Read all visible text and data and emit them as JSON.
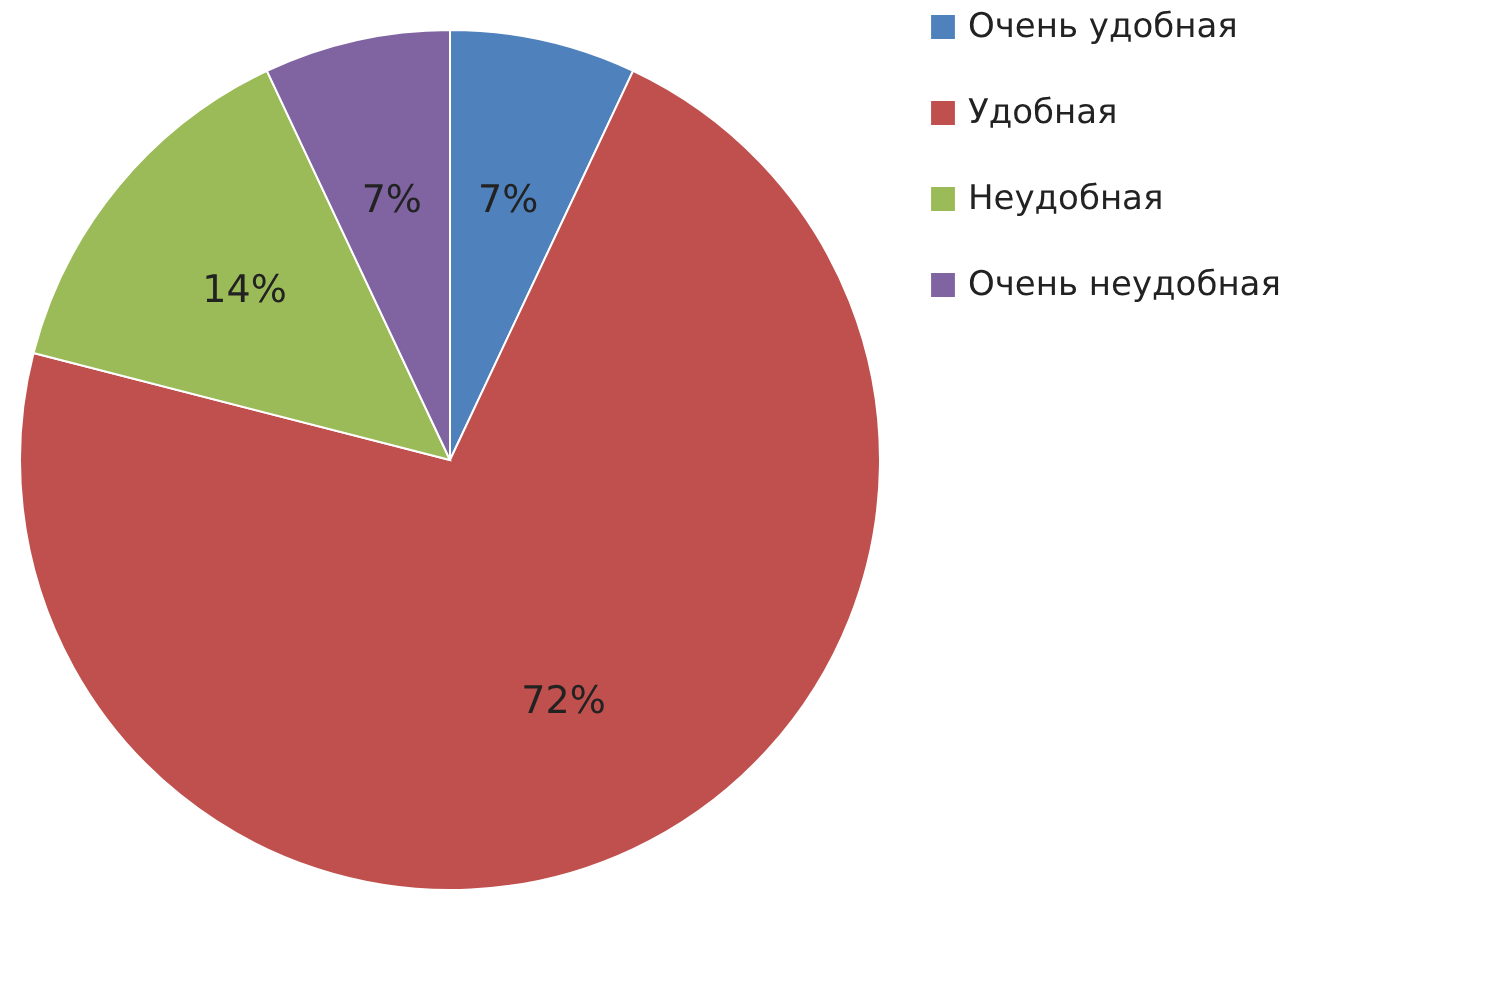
{
  "chart_data": {
    "type": "pie",
    "categories": [
      "Очень удобная",
      "Удобная",
      "Неудобная",
      "Очень неудобная"
    ],
    "values": [
      7,
      72,
      14,
      7
    ],
    "colors": [
      "#4f81bd",
      "#c0504d",
      "#9bbb59",
      "#8064a2"
    ],
    "value_labels": [
      "7%",
      "72%",
      "14%",
      "7%"
    ],
    "legend": "right"
  }
}
